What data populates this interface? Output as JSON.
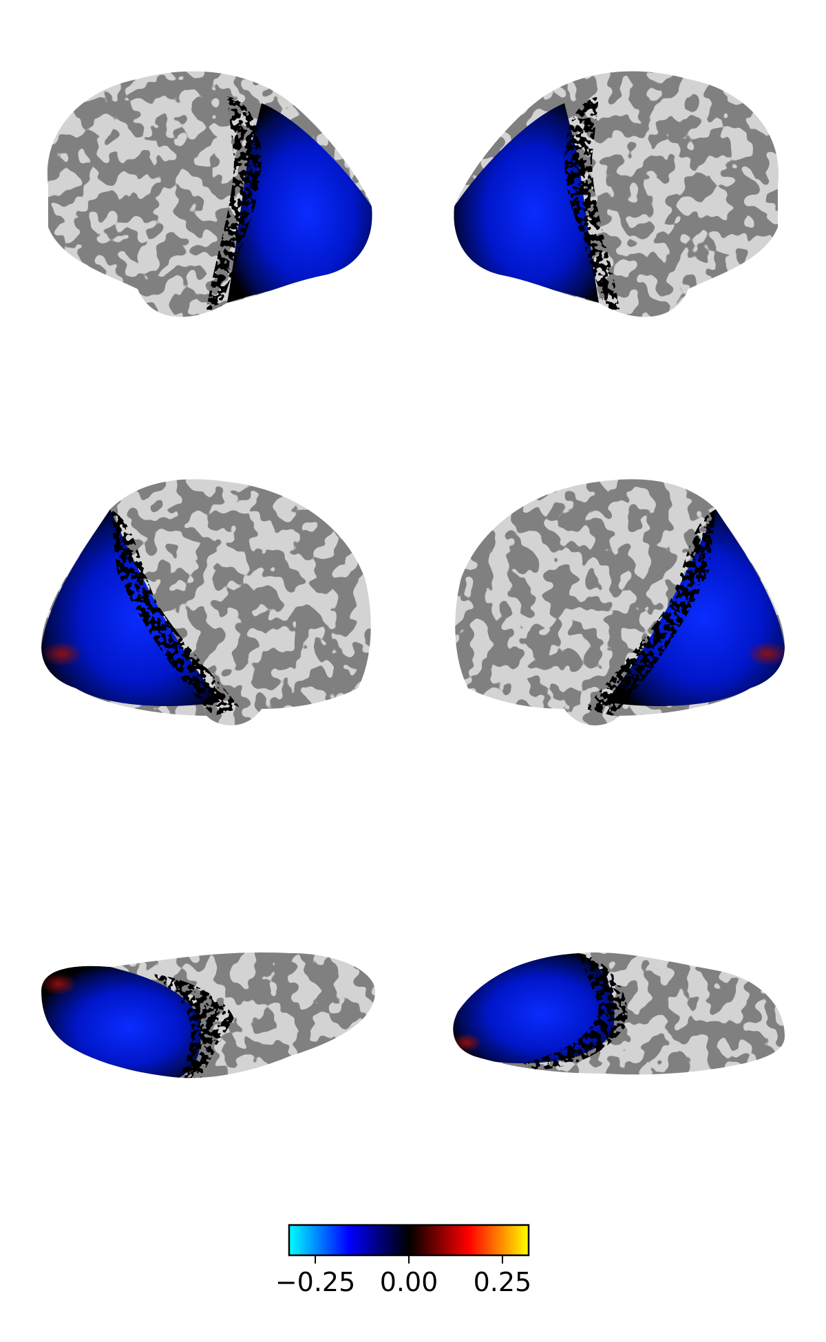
{
  "figure": {
    "views": [
      {
        "hemisphere": "left",
        "view": "lateral"
      },
      {
        "hemisphere": "right",
        "view": "lateral"
      },
      {
        "hemisphere": "left",
        "view": "medial"
      },
      {
        "hemisphere": "right",
        "view": "medial"
      },
      {
        "hemisphere": "left",
        "view": "ventral"
      },
      {
        "hemisphere": "right",
        "view": "ventral"
      }
    ],
    "background_color": "#ffffff",
    "sulcus_color": "#808080",
    "gyrus_color": "#d3d3d3"
  },
  "colorbar": {
    "colormap": "cold_hot",
    "range": [
      -0.32,
      0.32
    ],
    "colors": [
      "#00ffff",
      "#0000ff",
      "#000000",
      "#ff0000",
      "#ffff00"
    ],
    "ticks": [
      {
        "value": -0.25,
        "label": "−0.25"
      },
      {
        "value": 0.0,
        "label": "0.00"
      },
      {
        "value": 0.25,
        "label": "0.25"
      }
    ]
  }
}
